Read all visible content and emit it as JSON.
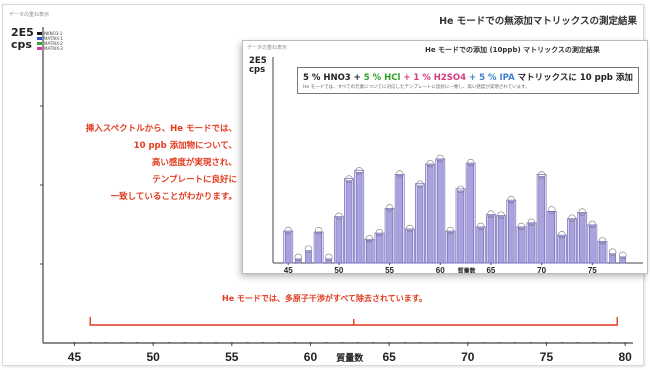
{
  "main_chart": {
    "header_label": "データの重ね表示",
    "title": "He モードでの無添加マトリックスの測定結果",
    "y_unit_value": "2E5",
    "y_unit": "cps",
    "x_label": "質量数",
    "legend": [
      {
        "name": "NKNO3-1",
        "color": "#1a1a1a"
      },
      {
        "name": "MATRIX-1",
        "color": "#2b4fd1"
      },
      {
        "name": "MATRIX-2",
        "color": "#3aa53a"
      },
      {
        "name": "MATRIX-3",
        "color": "#d63a9a"
      }
    ],
    "callout_lines": [
      "挿入スペクトルから、He モードでは、",
      "10 ppb 添加物について、",
      "高い感度が実現され、",
      "テンプレートに良好に",
      "一致していることがわかります。"
    ],
    "bottom_note": "He モードでは、多原子干渉がすべて除去されています。"
  },
  "inset_chart": {
    "header_label": "データの重ね表示",
    "title": "He モードでの添加 (10ppb) マトリックスの測定結果",
    "y_unit_value": "2E5",
    "y_unit": "cps",
    "x_label": "質量数",
    "matrix_line": [
      {
        "text": "5 % HNO3 +",
        "color": "#222222"
      },
      {
        "text": " 5 % HCl",
        "color": "#2aa22a"
      },
      {
        "text": " + 1 % H2SO4",
        "color": "#d63a7f"
      },
      {
        "text": " + 5 % IPA",
        "color": "#3f7fd0"
      },
      {
        "text": " マトリックスに 10 ppb 添加",
        "color": "#222222"
      }
    ],
    "matrix_subtext": "He モードでは、すべての元素についてに対応したテンプレートに良好に一致し、高い感度が実現されています。"
  },
  "chart_data": [
    {
      "type": "bar",
      "title": "He モードでの無添加マトリックスの測定結果",
      "xlabel": "質量数",
      "ylabel": "cps",
      "x_ticks": [
        45,
        50,
        55,
        60,
        65,
        70,
        75,
        80
      ],
      "xlim": [
        43,
        80.5
      ],
      "ylim": [
        0,
        200000
      ],
      "legend_position": "top-left",
      "series": [
        {
          "name": "NKNO3-1",
          "x": [
            45,
            46,
            47,
            48,
            49,
            50,
            51,
            52,
            53,
            54,
            55,
            56,
            57,
            58,
            59,
            60,
            61,
            62,
            63,
            64,
            65,
            66,
            67,
            68,
            69,
            70,
            71,
            72,
            73,
            74,
            75,
            76,
            77,
            78,
            79,
            80
          ],
          "values": [
            300,
            200,
            250,
            200,
            250,
            300,
            250,
            350,
            250,
            300,
            250,
            400,
            300,
            350,
            250,
            300,
            250,
            300,
            350,
            300,
            250,
            300,
            250,
            300,
            250,
            300,
            250,
            300,
            250,
            300,
            250,
            300,
            250,
            300,
            250,
            300
          ]
        }
      ]
    },
    {
      "type": "bar",
      "title": "He モードでの添加 (10ppb) マトリックスの測定結果",
      "xlabel": "質量数",
      "ylabel": "cps",
      "x_ticks": [
        45,
        50,
        55,
        60,
        65,
        70,
        75
      ],
      "xlim": [
        43.5,
        80
      ],
      "ylim": [
        0,
        200000
      ],
      "grid": false,
      "series": [
        {
          "name": "spectrum",
          "x": [
            45,
            46,
            47,
            48,
            49,
            50,
            51,
            52,
            53,
            54,
            55,
            56,
            57,
            58,
            59,
            60,
            61,
            62,
            63,
            64,
            65,
            66,
            67,
            68,
            69,
            70,
            71,
            72,
            73,
            74,
            75,
            76,
            77,
            78
          ],
          "values": [
            30000,
            4000,
            12000,
            30000,
            4000,
            44000,
            80000,
            88000,
            22000,
            28000,
            52000,
            85000,
            32000,
            75000,
            95000,
            100000,
            30000,
            70000,
            96000,
            34000,
            46000,
            45000,
            60000,
            34000,
            38000,
            84000,
            50000,
            26000,
            42000,
            48000,
            36000,
            20000,
            9000,
            6000
          ]
        },
        {
          "name": "template",
          "x": [
            45,
            48,
            50,
            51,
            52,
            53,
            54,
            55,
            56,
            57,
            58,
            59,
            60,
            61,
            62,
            63,
            64,
            65,
            66,
            67,
            68,
            69,
            70,
            71,
            72,
            73,
            74,
            75,
            76
          ],
          "values": [
            31000,
            30000,
            45000,
            82000,
            90000,
            23000,
            29000,
            53000,
            86000,
            33000,
            77000,
            96000,
            101000,
            31000,
            72000,
            97000,
            35000,
            47000,
            46000,
            61000,
            35000,
            39000,
            86000,
            50000,
            27000,
            43000,
            49000,
            37000,
            21000
          ]
        }
      ]
    }
  ]
}
